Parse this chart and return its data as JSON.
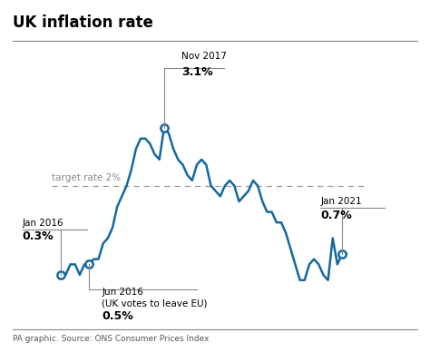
{
  "title": "UK inflation rate",
  "subtitle": "PA graphic. Source: ONS Consumer Prices Index",
  "target_rate": 2.0,
  "target_label": "target rate 2%",
  "line_color": "#1469a0",
  "background_color": "#ffffff",
  "ann_indices": [
    0,
    6,
    22,
    60
  ],
  "ann_values": [
    0.3,
    0.5,
    3.1,
    0.7
  ],
  "data": [
    0.3,
    0.3,
    0.5,
    0.5,
    0.3,
    0.5,
    0.5,
    0.6,
    0.6,
    0.9,
    1.0,
    1.2,
    1.6,
    1.8,
    2.0,
    2.3,
    2.7,
    2.9,
    2.9,
    2.8,
    2.6,
    2.5,
    3.1,
    3.0,
    2.7,
    2.5,
    2.4,
    2.2,
    2.1,
    2.4,
    2.5,
    2.4,
    2.0,
    1.9,
    1.8,
    2.0,
    2.1,
    2.0,
    1.7,
    1.8,
    1.9,
    2.1,
    2.0,
    1.7,
    1.5,
    1.5,
    1.3,
    1.3,
    1.1,
    0.8,
    0.5,
    0.2,
    0.2,
    0.5,
    0.6,
    0.5,
    0.3,
    0.2,
    1.0,
    0.5,
    0.7,
    0.7
  ],
  "ylim": [
    -0.5,
    4.2
  ],
  "n_points": 62
}
